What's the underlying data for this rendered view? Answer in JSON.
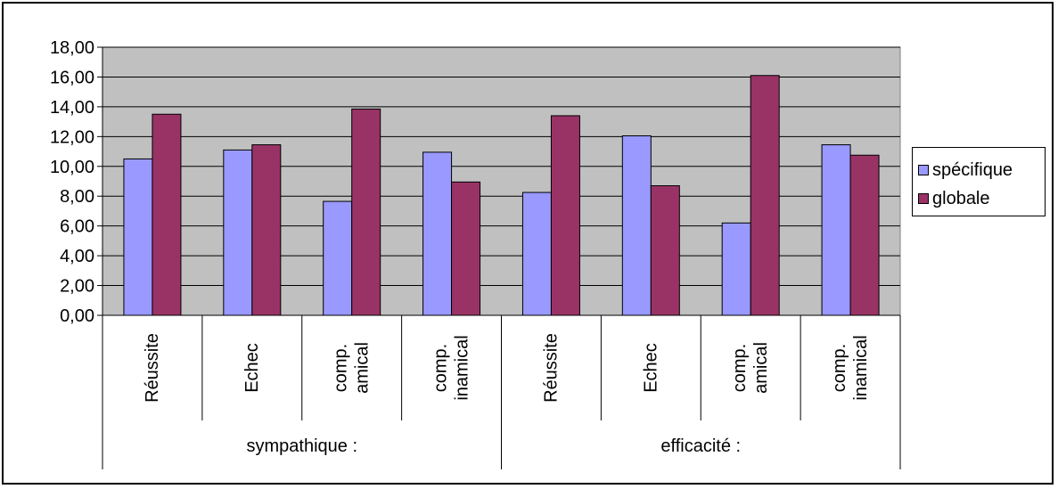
{
  "chart_data": {
    "type": "bar",
    "groups": [
      {
        "label": "sympathique :",
        "categories": [
          "Réussite",
          "Echec",
          "comp.\namical",
          "comp.\ninamical"
        ]
      },
      {
        "label": "efficacité :",
        "categories": [
          "Réussite",
          "Echec",
          "comp.\namical",
          "comp.\ninamical"
        ]
      }
    ],
    "series": [
      {
        "name": "spécifique",
        "color": "#9999ff",
        "values": [
          10.5,
          11.1,
          7.65,
          10.95,
          8.25,
          12.05,
          6.2,
          11.45
        ]
      },
      {
        "name": "globale",
        "color": "#993366",
        "values": [
          13.5,
          11.45,
          13.85,
          8.95,
          13.4,
          8.7,
          16.1,
          10.75
        ]
      }
    ],
    "ylim": [
      0,
      18
    ],
    "yticks": [
      "0,00",
      "2,00",
      "4,00",
      "6,00",
      "8,00",
      "10,00",
      "12,00",
      "14,00",
      "16,00",
      "18,00"
    ],
    "plot_background": "#c0c0c0",
    "grid": true,
    "legend_position": "right"
  }
}
